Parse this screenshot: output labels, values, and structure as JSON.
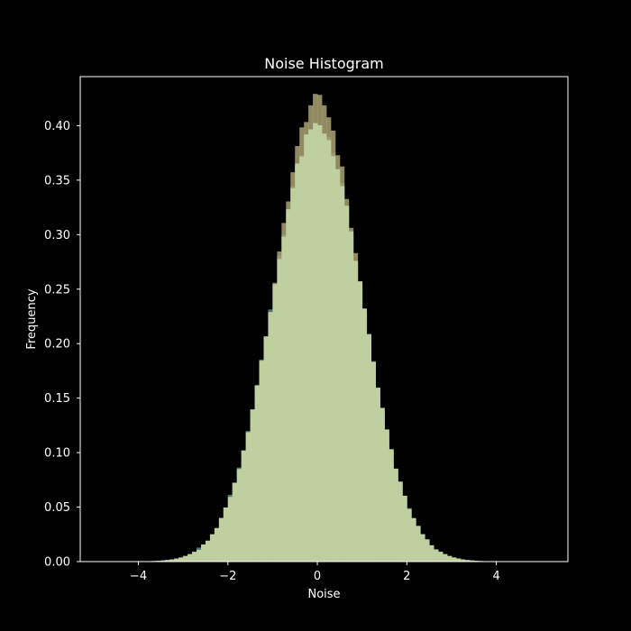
{
  "chart_data": {
    "type": "histogram",
    "title": "Noise Histogram",
    "xlabel": "Noise",
    "ylabel": "Frequency",
    "xlim": [
      -5.3,
      5.6
    ],
    "ylim": [
      0.0,
      0.445
    ],
    "x_ticks": [
      -4,
      -2,
      0,
      2,
      4
    ],
    "x_tick_labels": [
      "−4",
      "−2",
      "0",
      "2",
      "4"
    ],
    "y_ticks": [
      0.0,
      0.05,
      0.1,
      0.15,
      0.2,
      0.25,
      0.3,
      0.35,
      0.4
    ],
    "y_tick_labels": [
      "0.00",
      "0.05",
      "0.10",
      "0.15",
      "0.20",
      "0.25",
      "0.30",
      "0.35",
      "0.40"
    ],
    "grid": false,
    "legend": "none",
    "bins": {
      "start": -5.0,
      "end": 5.0,
      "count": 100
    },
    "series": [
      {
        "distribution": "gaussian",
        "mean": 0.0,
        "std": 1.0,
        "peak_density": 0.399,
        "color": "#5f8a8b",
        "opacity": 0.85
      },
      {
        "distribution": "gaussian",
        "mean": 0.0,
        "std": 0.94,
        "peak_density": 0.424,
        "color": "#a9a274",
        "opacity": 0.85
      },
      {
        "distribution": "gaussian",
        "mean": 0.0,
        "std": 1.0,
        "peak_density": 0.399,
        "color": "#bfcfa0",
        "opacity": 1.0
      }
    ],
    "colors": {
      "background": "#000000",
      "axes_edge": "#ffffff",
      "text": "#ffffff"
    }
  }
}
